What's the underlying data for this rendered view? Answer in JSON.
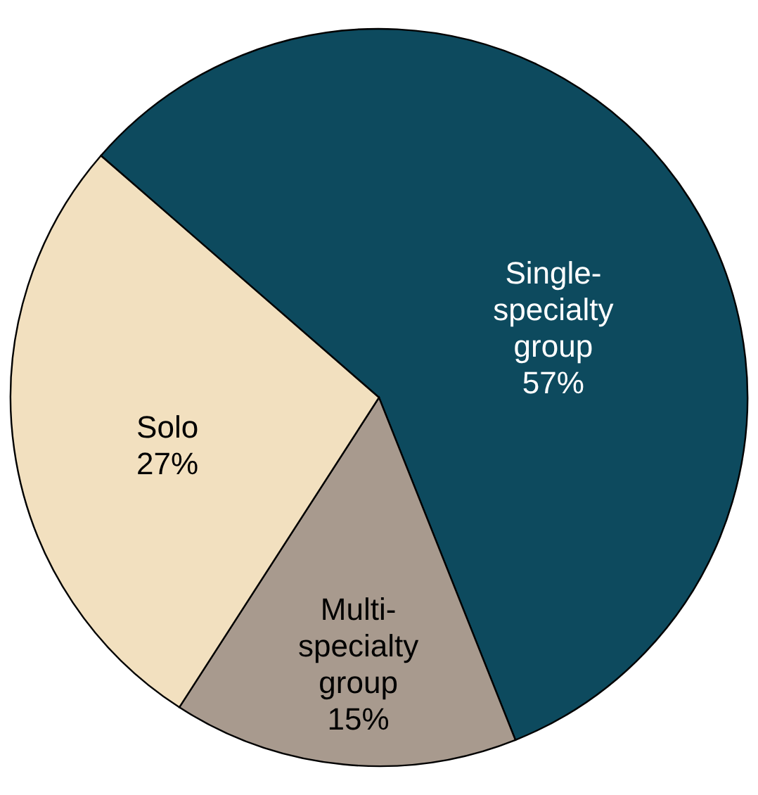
{
  "chart_data": {
    "type": "pie",
    "categories": [
      "Single-specialty group",
      "Multi-specialty group",
      "Solo"
    ],
    "values": [
      57,
      15,
      27
    ],
    "value_labels": [
      "57%",
      "15%",
      "27%"
    ],
    "colors": [
      "#0d4a5e",
      "#a89a8e",
      "#f2e0bf"
    ]
  }
}
